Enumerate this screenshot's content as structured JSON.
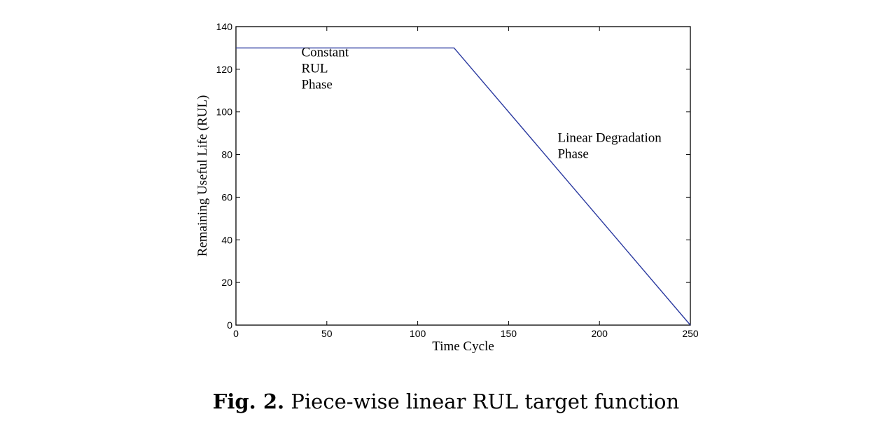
{
  "chart_data": {
    "type": "line",
    "title": "",
    "xlabel": "Time Cycle",
    "ylabel": "Remaining Useful Life (RUL)",
    "xlim": [
      0,
      250
    ],
    "ylim": [
      0,
      140
    ],
    "xticks": [
      0,
      50,
      100,
      150,
      200,
      250
    ],
    "yticks": [
      0,
      20,
      40,
      60,
      80,
      100,
      120,
      140
    ],
    "grid": false,
    "series": [
      {
        "x": [
          0,
          120,
          250
        ],
        "y": [
          130,
          130,
          0
        ],
        "color": "#2b3aa0"
      }
    ],
    "annotations": [
      {
        "lines": [
          "Constant",
          "RUL",
          "Phase"
        ],
        "x": 36,
        "y": 126
      },
      {
        "lines": [
          "Linear Degradation",
          "Phase"
        ],
        "x": 177,
        "y": 86
      }
    ]
  },
  "caption": {
    "label": "Fig. 2.",
    "text": "Piece-wise linear RUL target function"
  }
}
